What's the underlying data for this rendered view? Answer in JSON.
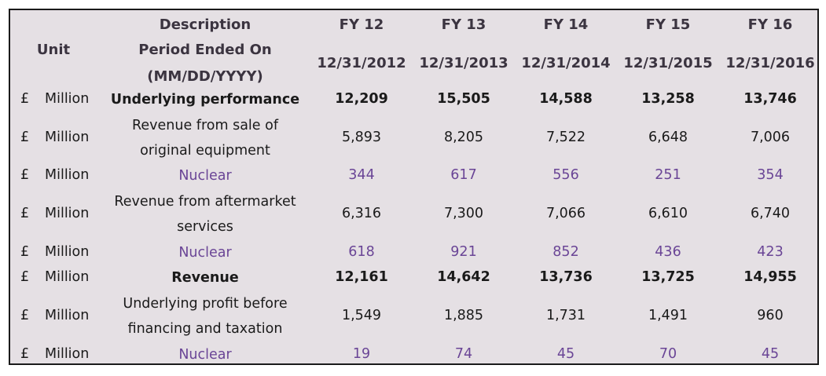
{
  "header": {
    "description": "Description",
    "unit": "Unit",
    "period_line1": "Period Ended On",
    "period_line2": "(MM/DD/YYYY)",
    "fy": [
      "FY 12",
      "FY 13",
      "FY 14",
      "FY 15",
      "FY 16"
    ],
    "dates": [
      "12/31/2012",
      "12/31/2013",
      "12/31/2014",
      "12/31/2015",
      "12/31/2016"
    ]
  },
  "rows": [
    {
      "currency": "£",
      "unit": "Million",
      "desc1": "Underlying performance",
      "desc2": "",
      "values": [
        "12,209",
        "15,505",
        "14,588",
        "13,258",
        "13,746"
      ],
      "style": "bold"
    },
    {
      "currency": "£",
      "unit": "Million",
      "desc1": "Revenue from sale of",
      "desc2": "original equipment",
      "values": [
        "5,893",
        "8,205",
        "7,522",
        "6,648",
        "7,006"
      ],
      "style": "normal"
    },
    {
      "currency": "£",
      "unit": "Million",
      "desc1": "Nuclear",
      "desc2": "",
      "values": [
        "344",
        "617",
        "556",
        "251",
        "354"
      ],
      "style": "nuclear"
    },
    {
      "currency": "£",
      "unit": "Million",
      "desc1": "Revenue from aftermarket",
      "desc2": "services",
      "values": [
        "6,316",
        "7,300",
        "7,066",
        "6,610",
        "6,740"
      ],
      "style": "normal"
    },
    {
      "currency": "£",
      "unit": "Million",
      "desc1": "Nuclear",
      "desc2": "",
      "values": [
        "618",
        "921",
        "852",
        "436",
        "423"
      ],
      "style": "nuclear"
    },
    {
      "currency": "£",
      "unit": "Million",
      "desc1": "Revenue",
      "desc2": "",
      "values": [
        "12,161",
        "14,642",
        "13,736",
        "13,725",
        "14,955"
      ],
      "style": "bold"
    },
    {
      "currency": "£",
      "unit": "Million",
      "desc1": "Underlying profit before",
      "desc2": "financing and taxation",
      "values": [
        "1,549",
        "1,885",
        "1,731",
        "1,491",
        "960"
      ],
      "style": "normal"
    },
    {
      "currency": "£",
      "unit": "Million",
      "desc1": "Nuclear",
      "desc2": "",
      "values": [
        "19",
        "74",
        "45",
        "70",
        "45"
      ],
      "style": "nuclear"
    }
  ],
  "colors": {
    "background": "#e5e0e4",
    "nuclear": "#6a4596",
    "header": "#3b3440"
  }
}
